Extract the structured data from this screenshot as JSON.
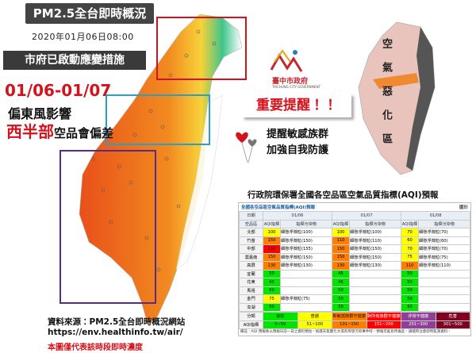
{
  "header": {
    "title": "PM2.5全台即時概況",
    "datetime": "2020年01月06日08:00"
  },
  "notice": "市府已啟動應變措施",
  "forecast": {
    "period": "01/06-01/07",
    "cause": "偏東風影響",
    "region": "西半部",
    "effect": "空品會偏差"
  },
  "logo": {
    "name": "臺中市政府",
    "english": "TAICHUNG CITY GOVERNMENT"
  },
  "reminder": {
    "title": "重要提醒！！",
    "lines": [
      "提醒敏感族群",
      "加強自我防護"
    ]
  },
  "side_map": {
    "label": "空氣惡化區"
  },
  "aqi_table": {
    "title": "行政院環保署全國各空品區空氣品質指標(AQI)預報",
    "subtitle": "全國各空品區空氣品質指標(AQI)預報",
    "graph_link": "圖形",
    "date_header": "日期",
    "region_header": "空品區",
    "dates": [
      "01/06",
      "01/07",
      "01/08"
    ],
    "columns": [
      "AQI指標",
      "指標污染物"
    ],
    "rows": [
      {
        "region": "北部",
        "aqi": [
          100,
          100,
          70
        ],
        "pollutant": [
          "細懸浮微粒(100)",
          "細懸浮微粒(100)",
          "細懸浮微粒(70)"
        ]
      },
      {
        "region": "竹苗",
        "aqi": [
          150,
          110,
          60
        ],
        "pollutant": [
          "細懸浮微粒(150)",
          "細懸浮微粒(110)",
          "細懸浮微粒(60)"
        ]
      },
      {
        "region": "中部",
        "aqi": [
          155,
          150,
          70
        ],
        "pollutant": [
          "細懸浮微粒(155)",
          "細懸浮微粒(150)",
          "細懸浮微粒(70)"
        ]
      },
      {
        "region": "雲嘉南",
        "aqi": [
          150,
          150,
          75
        ],
        "pollutant": [
          "細懸浮微粒(150)",
          "細懸浮微粒(150)",
          "細懸浮微粒(75)"
        ]
      },
      {
        "region": "高屏",
        "aqi": [
          130,
          130,
          110
        ],
        "pollutant": [
          "細懸浮微粒(130)",
          "細懸浮微粒(130)",
          "細懸浮微粒(110)"
        ]
      },
      {
        "region": "宜蘭",
        "aqi": [
          50,
          45,
          50
        ],
        "pollutant": [
          null,
          null,
          null
        ]
      },
      {
        "region": "花東",
        "aqi": [
          45,
          45,
          50
        ],
        "pollutant": [
          null,
          null,
          null
        ]
      },
      {
        "region": "馬祖",
        "aqi": [
          50,
          50,
          50
        ],
        "pollutant": [
          null,
          null,
          null
        ]
      },
      {
        "region": "金門",
        "aqi": [
          75,
          50,
          50
        ],
        "pollutant": [
          "細懸浮微粒(75)",
          null,
          null
        ]
      },
      {
        "region": "澎湖",
        "aqi": [
          50,
          50,
          50
        ],
        "pollutant": [
          null,
          null,
          null
        ]
      }
    ],
    "legend": {
      "row_labels": [
        "分類",
        "AQI指標"
      ],
      "categories": [
        "良好",
        "普通",
        "對敏感族群不健康",
        "對所有族群不健康",
        "非常不健康",
        "危害"
      ],
      "ranges": [
        "0~50",
        "51~100",
        "101~150",
        "151~200",
        "201~300",
        "301~500"
      ],
      "colors": [
        "#00e400",
        "#ffff00",
        "#ff7e00",
        "#ff0000",
        "#8f3f97",
        "#7e0023"
      ]
    },
    "note": "備註：AQI 預報係以預報日前一日之資料預估，如遇天氣變化大或有突發污染事件時，預報可能有所偏差，請隨時注意即時監測資料。"
  },
  "source": {
    "text": "資料來源：PM2.5全台即時概況網站",
    "url": "https://env.healthinfo.tw/air/",
    "disclaimer": "本圖僅代表該時段即時濃度"
  }
}
